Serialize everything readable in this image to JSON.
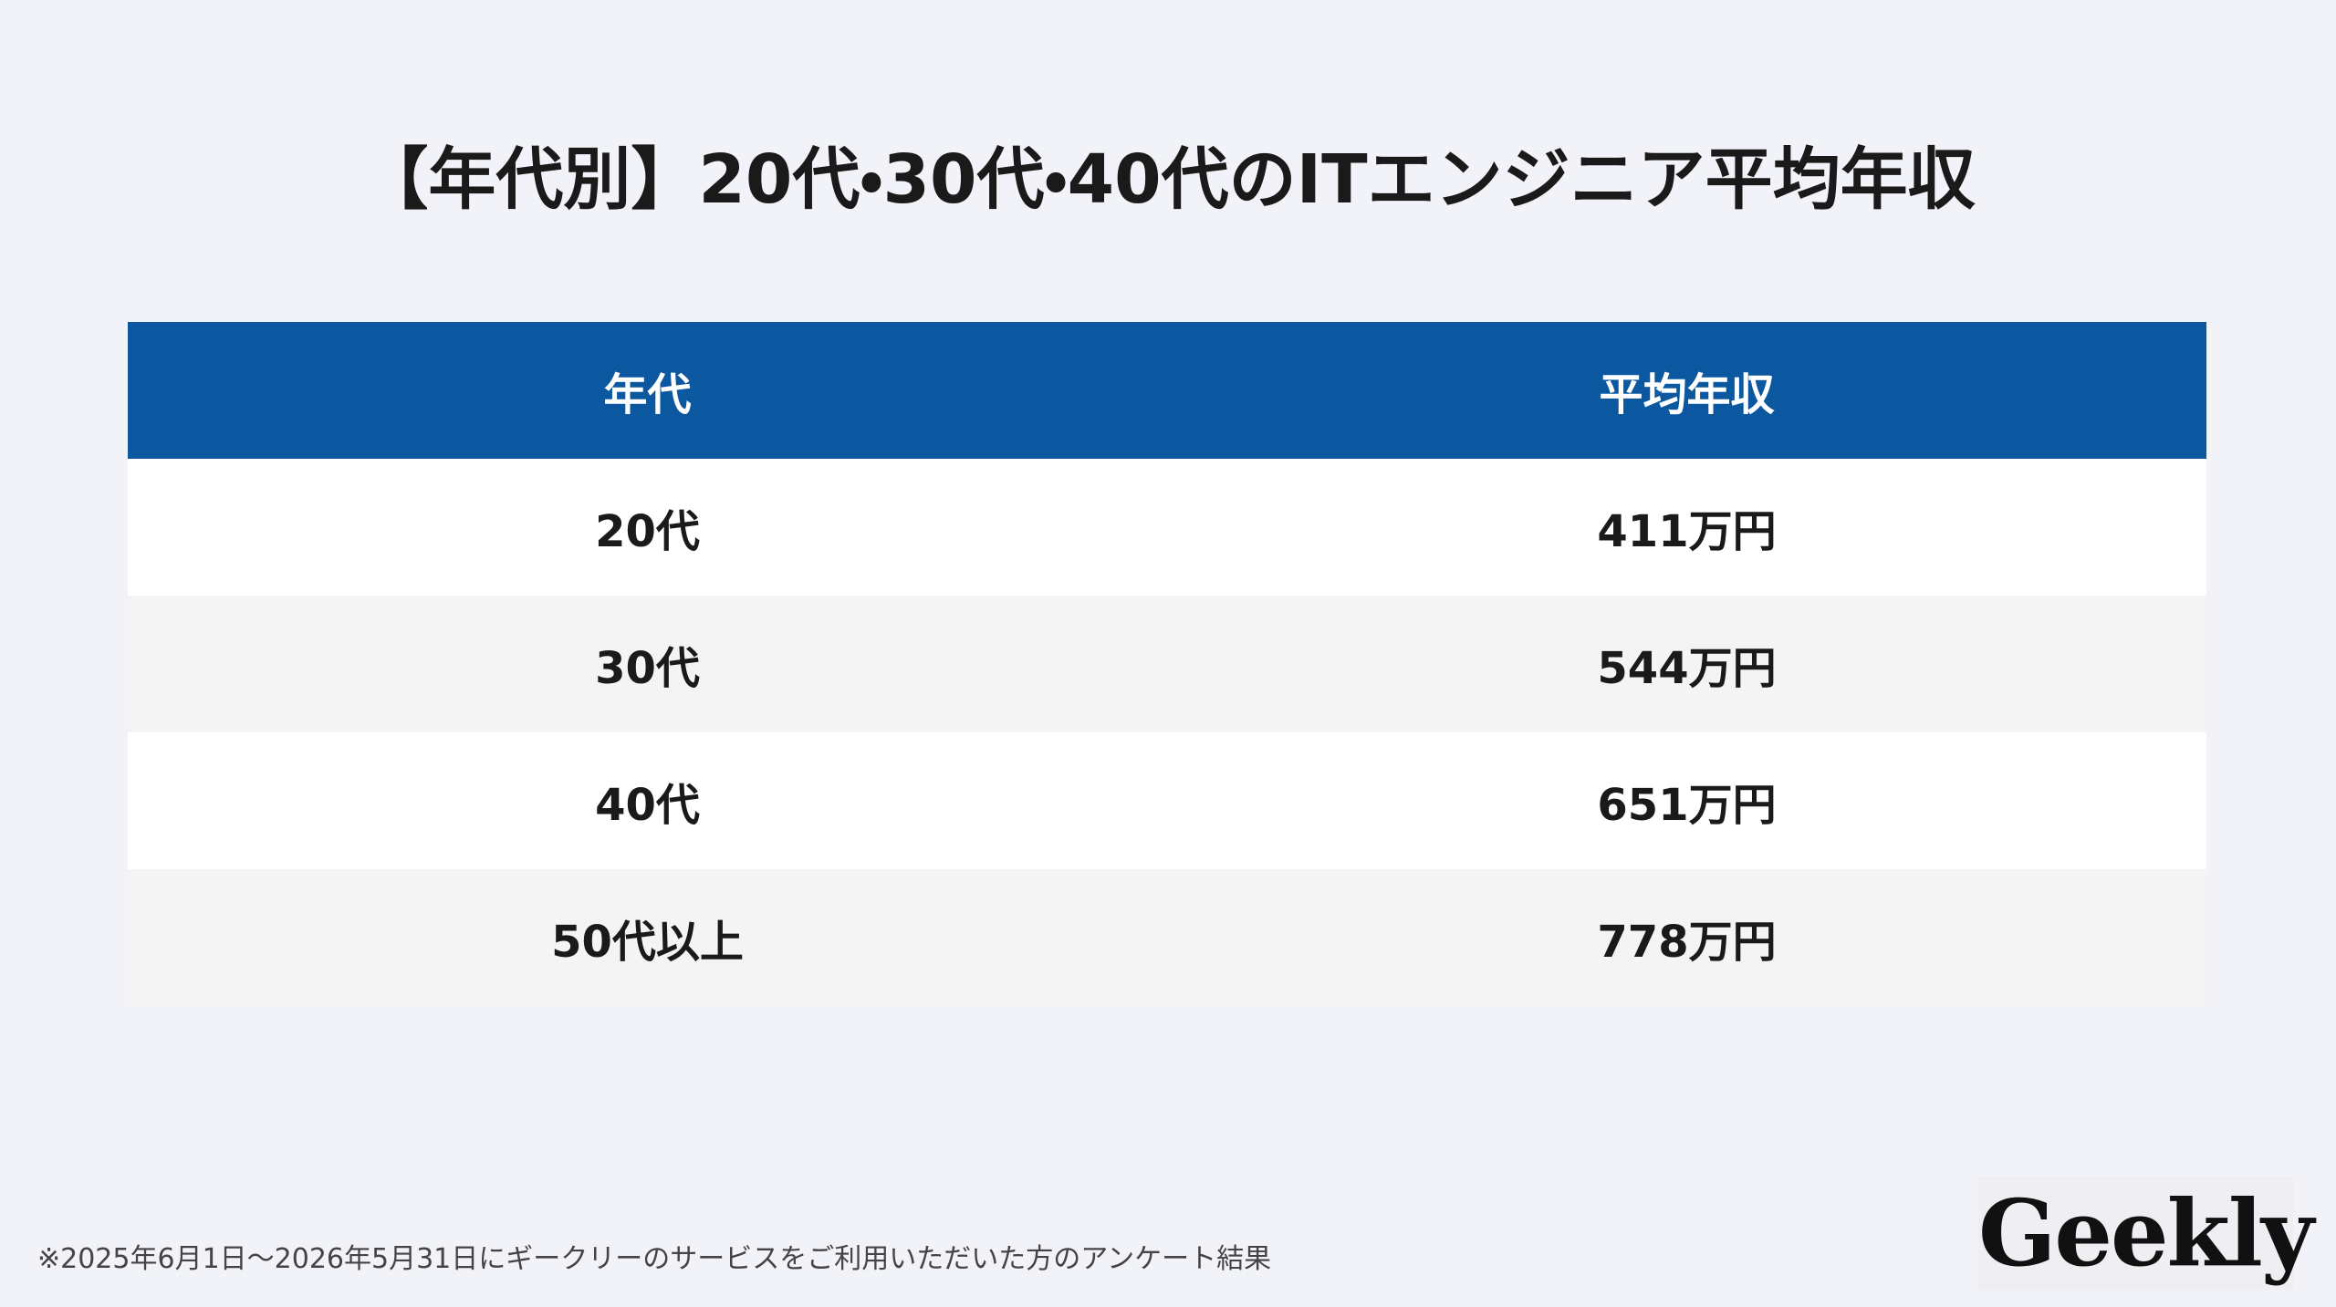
{
  "header": {
    "title": "【年代別】20代・30代・40代のITエンジニア平均年収"
  },
  "table": {
    "columns": [
      "年代",
      "平均年収"
    ],
    "rows": [
      [
        "20代",
        "411万円"
      ],
      [
        "30代",
        "544万円"
      ],
      [
        "40代",
        "651万円"
      ],
      [
        "50代以上",
        "778万円"
      ]
    ]
  },
  "footer": {
    "note": "※2025年6月1日〜2026年5月31日にギークリーのサービスをご利用いただいた方のアンケート結果",
    "logo": "Geekly"
  }
}
